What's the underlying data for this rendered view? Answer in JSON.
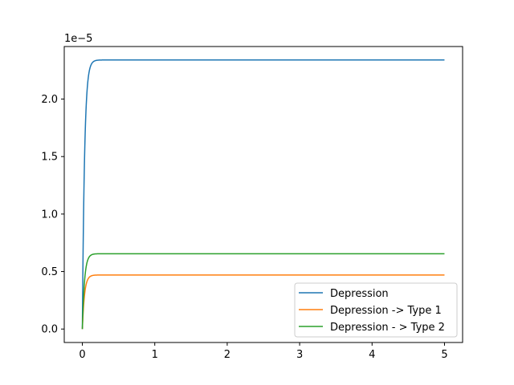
{
  "chart_data": {
    "type": "line",
    "title": "",
    "xlabel": "",
    "ylabel": "",
    "xlim": [
      -0.25,
      5.25
    ],
    "ylim": [
      -1.17e-06,
      2.457e-05
    ],
    "x_ticks": [
      0,
      1,
      2,
      3,
      4,
      5
    ],
    "x_tick_labels": [
      "0",
      "1",
      "2",
      "3",
      "4",
      "5"
    ],
    "y_ticks": [
      0.0,
      5e-06,
      1e-05,
      1.5e-05,
      2e-05
    ],
    "y_tick_labels": [
      "0.0",
      "0.5",
      "1.0",
      "1.5",
      "2.0"
    ],
    "y_offset_label": "1e−5",
    "grid": false,
    "legend_position": "lower right",
    "series": [
      {
        "name": "Depression",
        "color": "#1f77b4",
        "plateau": 2.34e-05,
        "time_constant": 0.03
      },
      {
        "name": "Depression -> Type 1",
        "color": "#ff7f0e",
        "plateau": 4.7e-06,
        "time_constant": 0.03
      },
      {
        "name": "Depression - > Type 2",
        "color": "#2ca02c",
        "plateau": 6.55e-06,
        "time_constant": 0.03
      }
    ],
    "x_range": [
      0,
      5
    ]
  }
}
